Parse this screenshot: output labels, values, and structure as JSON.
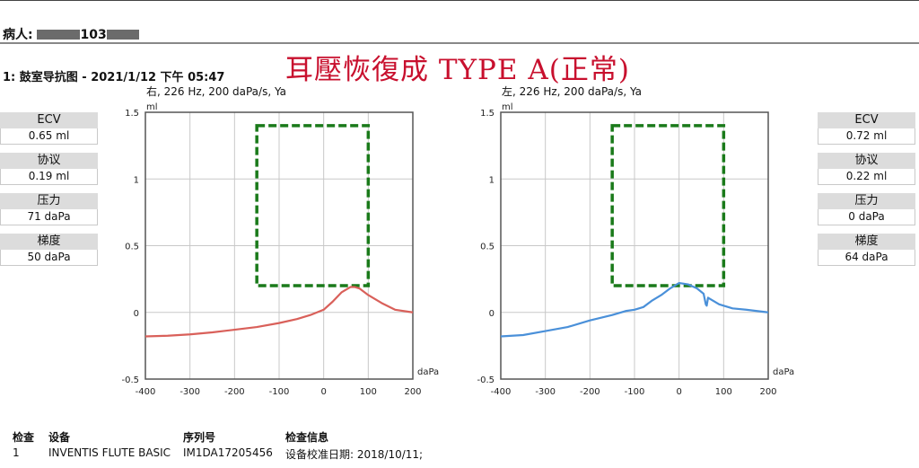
{
  "patient": {
    "label": "病人:",
    "id_fragment": "103"
  },
  "test_title": "1: 鼓室导抗图 - 2021/1/12 下午 05:47",
  "annotation": "耳壓恢復成 TYPE A(正常)",
  "right_ear": {
    "label": "右, 226 Hz, 200 daPa/s, Ya",
    "params": [
      {
        "label": "ECV",
        "value": "0.65 ml"
      },
      {
        "label": "协议",
        "value": "0.19 ml"
      },
      {
        "label": "压力",
        "value": "71 daPa"
      },
      {
        "label": "梯度",
        "value": "50 daPa"
      }
    ]
  },
  "left_ear": {
    "label": "左, 226 Hz, 200 daPa/s, Ya",
    "params": [
      {
        "label": "ECV",
        "value": "0.72 ml"
      },
      {
        "label": "协议",
        "value": "0.22 ml"
      },
      {
        "label": "压力",
        "value": "0 daPa"
      },
      {
        "label": "梯度",
        "value": "64 daPa"
      }
    ]
  },
  "chart_data": [
    {
      "type": "line",
      "subtitle": "右, 226 Hz, 200 daPa/s, Ya",
      "xlabel": "daPa",
      "ylabel": "ml",
      "xlim": [
        -400,
        200
      ],
      "ylim": [
        -0.5,
        1.5
      ],
      "xticks": [
        -400,
        -300,
        -200,
        -100,
        0,
        100,
        200
      ],
      "yticks": [
        -0.5,
        0,
        0.5,
        1,
        1.5
      ],
      "grid": true,
      "series": [
        {
          "color": "#d9605a",
          "x": [
            -400,
            -350,
            -300,
            -250,
            -200,
            -150,
            -100,
            -60,
            -30,
            0,
            20,
            40,
            60,
            70,
            80,
            100,
            130,
            160,
            200
          ],
          "y": [
            -0.18,
            -0.175,
            -0.165,
            -0.15,
            -0.13,
            -0.11,
            -0.08,
            -0.05,
            -0.02,
            0.02,
            0.08,
            0.15,
            0.19,
            0.19,
            0.18,
            0.13,
            0.07,
            0.02,
            0.0
          ]
        }
      ],
      "reference_box": {
        "color": "#1a7a1a",
        "x": [
          -150,
          100
        ],
        "y": [
          0.2,
          1.4
        ]
      }
    },
    {
      "type": "line",
      "subtitle": "左, 226 Hz, 200 daPa/s, Ya",
      "xlabel": "daPa",
      "ylabel": "ml",
      "xlim": [
        -400,
        200
      ],
      "ylim": [
        -0.5,
        1.5
      ],
      "xticks": [
        -400,
        -300,
        -200,
        -100,
        0,
        100,
        200
      ],
      "yticks": [
        -0.5,
        0,
        0.5,
        1,
        1.5
      ],
      "grid": true,
      "series": [
        {
          "color": "#4a90d9",
          "x": [
            -400,
            -350,
            -300,
            -250,
            -200,
            -150,
            -120,
            -100,
            -80,
            -60,
            -40,
            -20,
            0,
            20,
            40,
            55,
            60,
            62,
            65,
            70,
            90,
            120,
            150,
            200
          ],
          "y": [
            -0.18,
            -0.17,
            -0.14,
            -0.11,
            -0.06,
            -0.02,
            0.01,
            0.02,
            0.04,
            0.09,
            0.13,
            0.18,
            0.22,
            0.21,
            0.18,
            0.14,
            0.06,
            0.05,
            0.11,
            0.1,
            0.06,
            0.03,
            0.02,
            0.0
          ]
        }
      ],
      "reference_box": {
        "color": "#1a7a1a",
        "x": [
          -150,
          100
        ],
        "y": [
          0.2,
          1.4
        ]
      }
    }
  ],
  "footer": {
    "headers": [
      "检查",
      "设备",
      "序列号",
      "检查信息"
    ],
    "row": [
      "1",
      "INVENTIS FLUTE BASIC",
      "IM1DA17205456",
      "设备校准日期: 2018/10/11;"
    ]
  }
}
